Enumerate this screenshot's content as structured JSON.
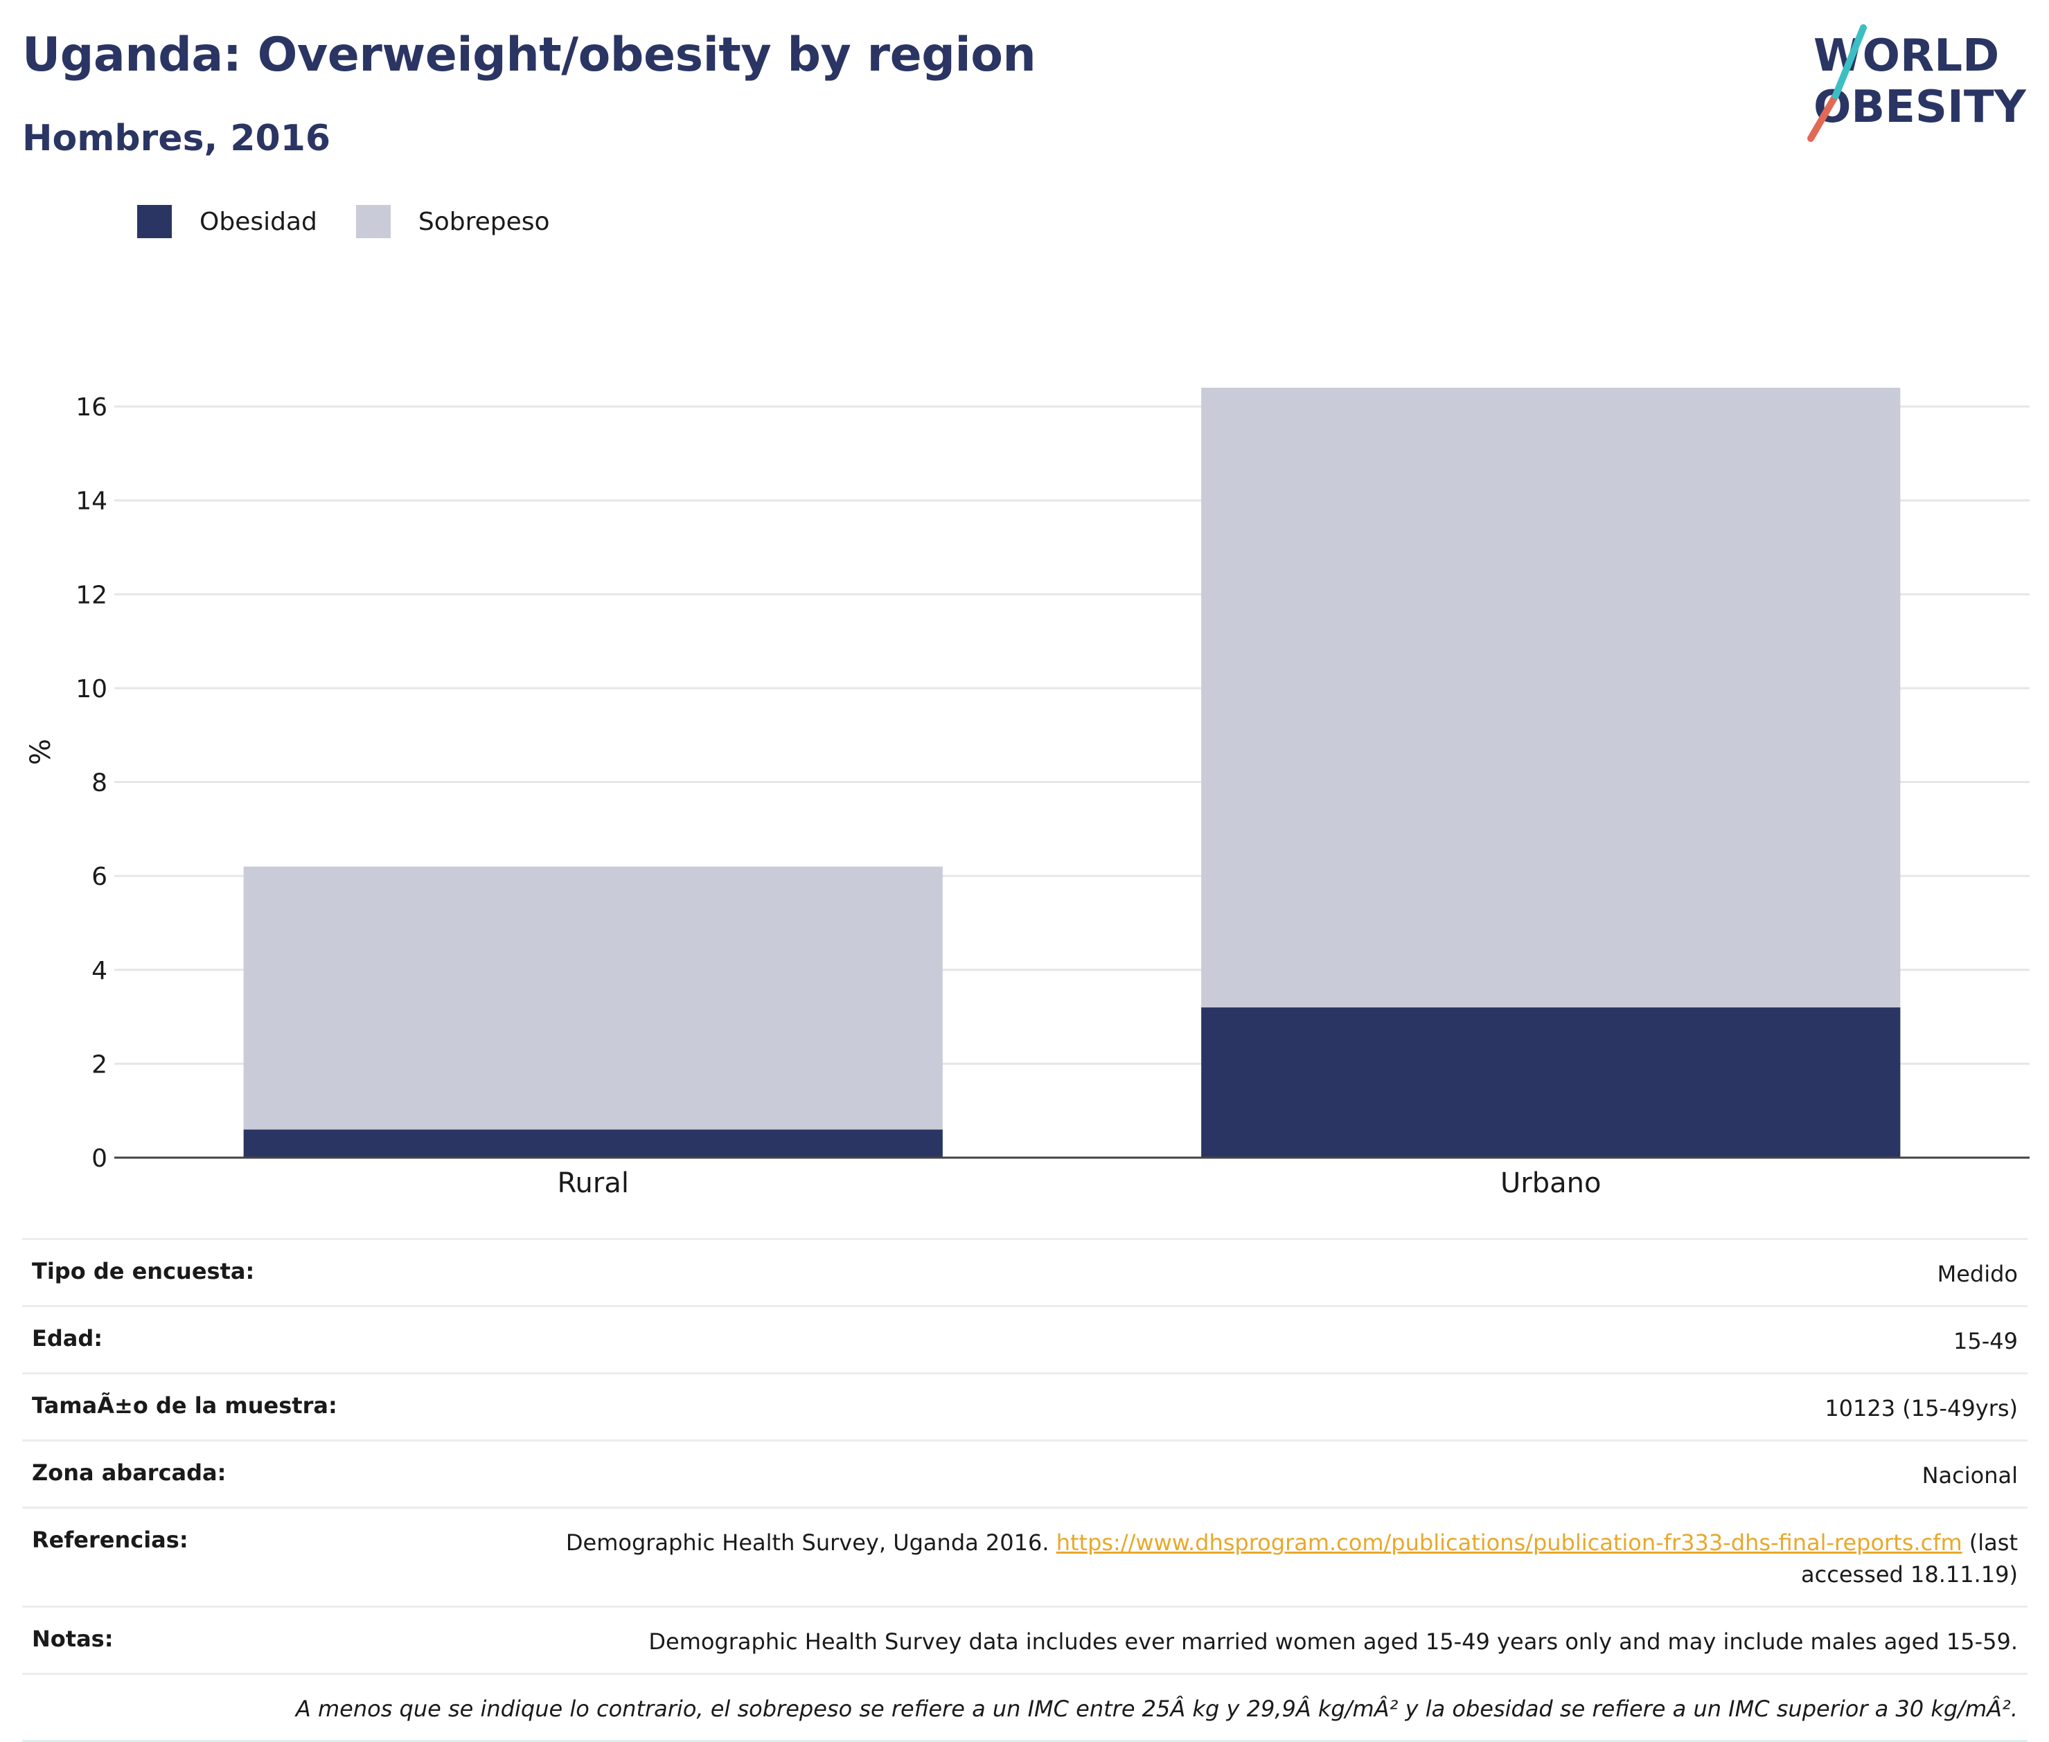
{
  "header": {
    "title": "Uganda: Overweight/obesity by region",
    "subtitle": "Hombres, 2016"
  },
  "logo": {
    "line1": "WORLD",
    "line2": "OBESITY"
  },
  "colors": {
    "obesity": "#2a3563",
    "overweight": "#c9ccd8",
    "title": "#2a3563",
    "link": "#e8a82a"
  },
  "chart_data": {
    "type": "bar",
    "stacked": true,
    "categories": [
      "Rural",
      "Urbano"
    ],
    "series": [
      {
        "name": "Obesidad",
        "values": [
          0.6,
          3.2
        ],
        "color": "#2a3563"
      },
      {
        "name": "Sobrepeso",
        "values": [
          5.6,
          13.2
        ],
        "color": "#c9ccd8"
      }
    ],
    "ylabel": "%",
    "ylim": [
      0,
      16.4
    ],
    "yticks": [
      0,
      2,
      4,
      6,
      8,
      10,
      12,
      14,
      16
    ],
    "grid": true,
    "legend": "top-left"
  },
  "meta": {
    "rows": [
      {
        "key": "Tipo de encuesta:",
        "value": "Medido"
      },
      {
        "key": "Edad:",
        "value": "15-49"
      },
      {
        "key": "TamaÃ±o de la muestra:",
        "value": "10123 (15-49yrs)"
      },
      {
        "key": "Zona abarcada:",
        "value": "Nacional"
      }
    ],
    "references": {
      "key": "Referencias:",
      "text_before": "Demographic Health Survey, Uganda 2016. ",
      "link": "https://www.dhsprogram.com/publications/publication-fr333-dhs-final-reports.cfm",
      "text_after": " (last accessed 18.11.19)"
    },
    "notes": {
      "key": "Notas:",
      "value": "Demographic Health Survey data includes ever married women aged 15-49 years only and may include males aged 15-59."
    },
    "footnote": "A menos que se indique lo contrario, el sobrepeso se refiere a un IMC entre 25Â kg y 29,9Â kg/mÂ² y la obesidad se refiere a un IMC superior a 30 kg/mÂ²."
  }
}
